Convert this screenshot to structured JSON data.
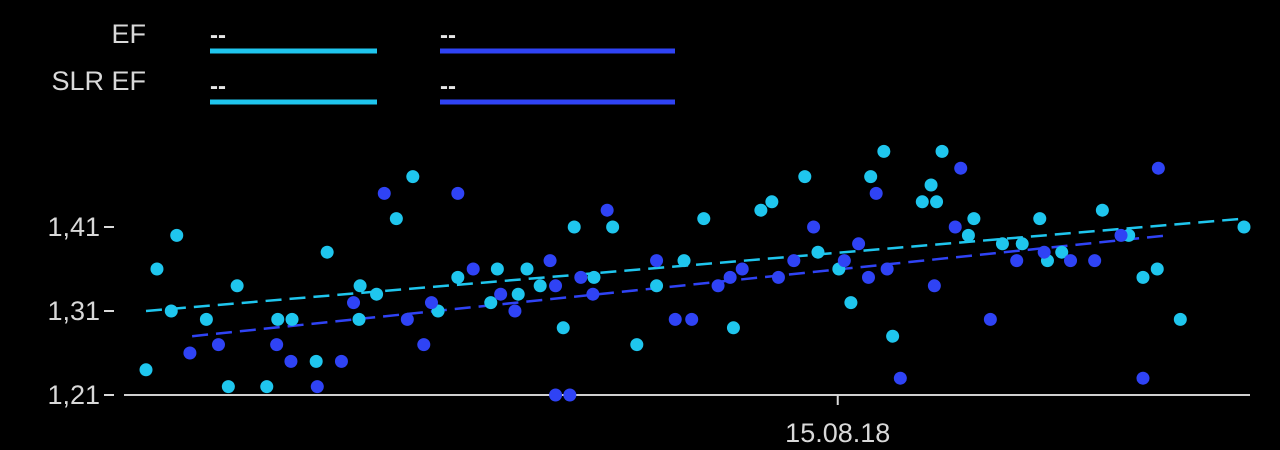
{
  "legend": {
    "rows": [
      {
        "label": "EF",
        "light_value": "--",
        "dark_value": "--"
      },
      {
        "label": "SLR EF",
        "light_value": "--",
        "dark_value": "--"
      }
    ]
  },
  "colors": {
    "light": "#1fc6ee",
    "dark": "#2f43f5",
    "axis": "#d9d9d9",
    "text": "#d9d9d9",
    "background": "#000000"
  },
  "chart_data": {
    "type": "scatter",
    "title": "",
    "xlabel": "",
    "ylabel": "",
    "x_ticks": [
      "15.08.18"
    ],
    "y_ticks": [
      "1,21",
      "1,31",
      "1,41"
    ],
    "y_tick_values": [
      1.21,
      1.31,
      1.41
    ],
    "ylim": [
      1.21,
      1.5
    ],
    "x_index_range": [
      0,
      100
    ],
    "x_tick_index": 63,
    "grid": false,
    "legend": "top-left",
    "series": [
      {
        "color_key": "light",
        "points": [
          [
            0,
            1.24
          ],
          [
            1,
            1.36
          ],
          [
            2.3,
            1.31
          ],
          [
            2.8,
            1.4
          ],
          [
            5.5,
            1.3
          ],
          [
            7.5,
            1.22
          ],
          [
            8.3,
            1.34
          ],
          [
            11,
            1.22
          ],
          [
            12,
            1.3
          ],
          [
            13.3,
            1.3
          ],
          [
            15.5,
            1.25
          ],
          [
            16.5,
            1.38
          ],
          [
            19.4,
            1.3
          ],
          [
            19.5,
            1.34
          ],
          [
            21,
            1.33
          ],
          [
            22.8,
            1.42
          ],
          [
            24.3,
            1.47
          ],
          [
            26.6,
            1.31
          ],
          [
            28.4,
            1.35
          ],
          [
            31.4,
            1.32
          ],
          [
            32,
            1.36
          ],
          [
            33.9,
            1.33
          ],
          [
            34.7,
            1.36
          ],
          [
            35.9,
            1.34
          ],
          [
            38,
            1.29
          ],
          [
            39,
            1.41
          ],
          [
            40.8,
            1.35
          ],
          [
            42.5,
            1.41
          ],
          [
            44.7,
            1.27
          ],
          [
            46.5,
            1.34
          ],
          [
            49,
            1.37
          ],
          [
            50.8,
            1.42
          ],
          [
            53.5,
            1.29
          ],
          [
            56,
            1.43
          ],
          [
            57,
            1.44
          ],
          [
            60,
            1.47
          ],
          [
            61.2,
            1.38
          ],
          [
            63.1,
            1.36
          ],
          [
            64.2,
            1.32
          ],
          [
            66,
            1.47
          ],
          [
            67.2,
            1.5
          ],
          [
            68,
            1.28
          ],
          [
            70.7,
            1.44
          ],
          [
            71.5,
            1.46
          ],
          [
            72,
            1.44
          ],
          [
            72.5,
            1.5
          ],
          [
            74.9,
            1.4
          ],
          [
            75.4,
            1.42
          ],
          [
            78,
            1.39
          ],
          [
            79.8,
            1.39
          ],
          [
            81.4,
            1.42
          ],
          [
            82.1,
            1.37
          ],
          [
            83.4,
            1.38
          ],
          [
            87.1,
            1.43
          ],
          [
            89.5,
            1.4
          ],
          [
            90.8,
            1.35
          ],
          [
            92.1,
            1.36
          ],
          [
            94.2,
            1.3
          ],
          [
            100,
            1.41
          ]
        ]
      },
      {
        "color_key": "dark",
        "points": [
          [
            4,
            1.26
          ],
          [
            6.6,
            1.27
          ],
          [
            11.9,
            1.27
          ],
          [
            13.2,
            1.25
          ],
          [
            15.6,
            1.22
          ],
          [
            17.8,
            1.25
          ],
          [
            18.9,
            1.32
          ],
          [
            21.7,
            1.45
          ],
          [
            23.8,
            1.3
          ],
          [
            25.3,
            1.27
          ],
          [
            26,
            1.32
          ],
          [
            28.4,
            1.45
          ],
          [
            29.8,
            1.36
          ],
          [
            32.3,
            1.33
          ],
          [
            33.6,
            1.31
          ],
          [
            36.8,
            1.37
          ],
          [
            37.3,
            1.34
          ],
          [
            37.3,
            1.21
          ],
          [
            38.6,
            1.21
          ],
          [
            39.6,
            1.35
          ],
          [
            40.7,
            1.33
          ],
          [
            42,
            1.43
          ],
          [
            46.5,
            1.37
          ],
          [
            48.2,
            1.3
          ],
          [
            49.7,
            1.3
          ],
          [
            52.1,
            1.34
          ],
          [
            53.2,
            1.35
          ],
          [
            54.3,
            1.36
          ],
          [
            57.6,
            1.35
          ],
          [
            59,
            1.37
          ],
          [
            60.8,
            1.41
          ],
          [
            63.6,
            1.37
          ],
          [
            64.9,
            1.39
          ],
          [
            65.8,
            1.35
          ],
          [
            66.5,
            1.45
          ],
          [
            67.5,
            1.36
          ],
          [
            68.7,
            1.23
          ],
          [
            71.8,
            1.34
          ],
          [
            73.7,
            1.41
          ],
          [
            74.2,
            1.48
          ],
          [
            76.9,
            1.3
          ],
          [
            79.3,
            1.37
          ],
          [
            81.8,
            1.38
          ],
          [
            84.2,
            1.37
          ],
          [
            86.4,
            1.37
          ],
          [
            88.8,
            1.4
          ],
          [
            90.8,
            1.23
          ],
          [
            92.2,
            1.48
          ]
        ]
      }
    ],
    "trendlines": [
      {
        "color_key": "light",
        "from": [
          0,
          1.31
        ],
        "to": [
          100,
          1.42
        ],
        "style": "dashed"
      },
      {
        "color_key": "dark",
        "from": [
          4.2,
          1.28
        ],
        "to": [
          93,
          1.4
        ],
        "style": "dashed"
      }
    ]
  }
}
